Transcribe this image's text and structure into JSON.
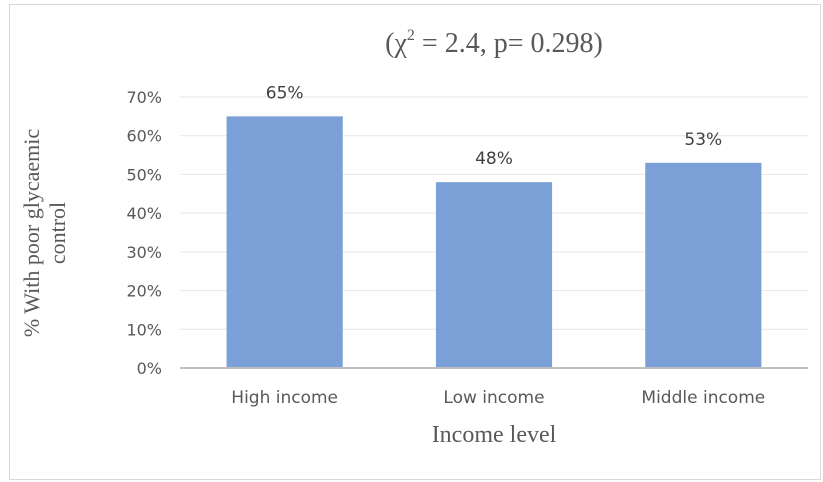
{
  "chart_data": {
    "type": "bar",
    "title": "(χ² = 2.4, p= 0.298)",
    "title_parts": {
      "chi": "(χ",
      "sup": "2",
      "rest": " = 2.4, p= 0.298)"
    },
    "xlabel": "Income level",
    "ylabel": "% With poor glycaemic control",
    "ylabel_lines": [
      "% With poor glycaemic",
      "control"
    ],
    "categories": [
      "High income",
      "Low income",
      "Middle income"
    ],
    "values": [
      65,
      48,
      53
    ],
    "data_labels": [
      "65%",
      "48%",
      "53%"
    ],
    "ylim": [
      0,
      70
    ],
    "yticks": [
      0,
      10,
      20,
      30,
      40,
      50,
      60,
      70
    ],
    "ytick_labels": [
      "0%",
      "10%",
      "20%",
      "30%",
      "40%",
      "50%",
      "60%",
      "70%"
    ],
    "grid": true,
    "bar_color": "#7aa0d7",
    "axis_color": "#bfbfbf",
    "grid_color": "#e6e6e6",
    "text_color": "#595959"
  }
}
